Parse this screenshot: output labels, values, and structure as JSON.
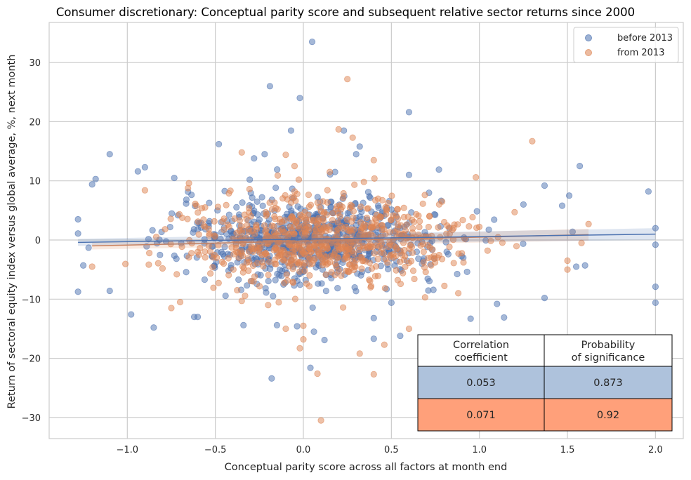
{
  "chart_data": {
    "type": "scatter",
    "title": "Consumer discretionary: Conceptual parity score and subsequent relative sector returns since 2000",
    "xlabel": "Conceptual parity score across all factors at month end",
    "ylabel": "Return of sectoral equity index versus global average, %, next month",
    "xlim": [
      -1.45,
      2.15
    ],
    "ylim": [
      -34,
      37
    ],
    "xticks": [
      -1.0,
      -0.5,
      0.0,
      0.5,
      1.0,
      1.5,
      2.0
    ],
    "xtick_labels": [
      "−1.0",
      "−0.5",
      "0.0",
      "0.5",
      "1.0",
      "1.5",
      "2.0"
    ],
    "yticks": [
      -30,
      -20,
      -10,
      0,
      10,
      20,
      30
    ],
    "ytick_labels": [
      "−30",
      "−20",
      "−10",
      "0",
      "10",
      "20",
      "30"
    ],
    "grid": true,
    "legend_placement": "top-right",
    "series": [
      {
        "name": "before 2013",
        "color": "#4c72b0",
        "regression": {
          "x": [
            -1.28,
            2.0
          ],
          "y": [
            -0.4,
            1.0
          ]
        },
        "points": [
          [
            0.05,
            33.5
          ],
          [
            -0.19,
            26
          ],
          [
            -0.02,
            24
          ],
          [
            0.6,
            21.6
          ],
          [
            -0.07,
            18.5
          ],
          [
            1.96,
            8.2
          ],
          [
            2.0,
            2
          ],
          [
            2.0,
            -0.8
          ],
          [
            2.0,
            -7.9
          ],
          [
            2.0,
            -10.6
          ],
          [
            -1.1,
            14.5
          ],
          [
            -0.48,
            16.2
          ],
          [
            0.04,
            -21.6
          ],
          [
            -0.18,
            -23.4
          ],
          [
            -0.85,
            -14.8
          ],
          [
            1.57,
            12.5
          ],
          [
            0.95,
            -13.3
          ],
          [
            1.14,
            -13.1
          ],
          [
            0.55,
            -16.2
          ],
          [
            -1.1,
            -8.6
          ],
          [
            -1.28,
            3.5
          ],
          [
            -1.28,
            1.1
          ],
          [
            -1.2,
            9.4
          ],
          [
            -1.18,
            10.3
          ],
          [
            -0.94,
            11.6
          ],
          [
            -0.9,
            12.3
          ],
          [
            1.37,
            9.2
          ],
          [
            1.51,
            7.5
          ],
          [
            1.55,
            -4.5
          ],
          [
            1.37,
            -9.8
          ],
          [
            1.1,
            -10.8
          ],
          [
            0.77,
            11.9
          ],
          [
            0.32,
            15.8
          ],
          [
            0.3,
            14.5
          ],
          [
            0.18,
            11.5
          ],
          [
            -0.28,
            13.8
          ],
          [
            0.23,
            18.5
          ],
          [
            -0.34,
            -14.4
          ],
          [
            -0.15,
            -14.4
          ],
          [
            0.4,
            -16.7
          ],
          [
            0.12,
            -16.9
          ],
          [
            -0.62,
            -13.0
          ],
          [
            0.5,
            -10.6
          ],
          [
            -1.25,
            -4.3
          ],
          [
            -1.22,
            -1.3
          ],
          [
            1.6,
            -4.3
          ],
          [
            1.47,
            5.8
          ],
          [
            1.25,
            6.0
          ],
          [
            -0.22,
            14.5
          ],
          [
            0.6,
            11.0
          ],
          [
            -0.6,
            -13.0
          ],
          [
            0.06,
            -15.5
          ],
          [
            0.4,
            -13.2
          ]
        ]
      },
      {
        "name": "from 2013",
        "color": "#dd8452",
        "regression": {
          "x": [
            -1.2,
            1.62
          ],
          "y": [
            -1.0,
            0.9
          ]
        },
        "points": [
          [
            0.25,
            27.2
          ],
          [
            0.2,
            18.7
          ],
          [
            0.28,
            17.3
          ],
          [
            1.3,
            16.7
          ],
          [
            0.1,
            -30.5
          ],
          [
            0.08,
            -22.6
          ],
          [
            0.4,
            -22.7
          ],
          [
            0.46,
            -17.7
          ],
          [
            0.32,
            -19.2
          ],
          [
            -0.02,
            -18.3
          ],
          [
            0.0,
            -14.5
          ],
          [
            -0.35,
            14.8
          ],
          [
            -0.1,
            14.4
          ],
          [
            1.62,
            2.7
          ],
          [
            1.5,
            -3.5
          ],
          [
            1.5,
            -5.0
          ],
          [
            1.58,
            -0.5
          ],
          [
            1.2,
            4.7
          ],
          [
            -0.75,
            -11.5
          ],
          [
            -0.7,
            -10.5
          ],
          [
            -0.35,
            -10.3
          ],
          [
            0.0,
            -16.8
          ],
          [
            -0.1,
            -15.0
          ],
          [
            -0.2,
            -11.0
          ],
          [
            0.6,
            -15.0
          ],
          [
            0.88,
            -9.0
          ],
          [
            0.98,
            10.6
          ],
          [
            -0.8,
            -4.8
          ],
          [
            -1.2,
            -4.5
          ],
          [
            -0.9,
            8.4
          ],
          [
            0.4,
            13.5
          ],
          [
            -0.05,
            12.5
          ],
          [
            0.15,
            11.5
          ],
          [
            -0.65,
            9.6
          ]
        ]
      }
    ],
    "table": {
      "headers": [
        "Correlation\ncoefficient",
        "Probability\nof significance"
      ],
      "rows": [
        {
          "values": [
            "0.053",
            "0.873"
          ],
          "color": "#aec2dc"
        },
        {
          "values": [
            "0.071",
            "0.92"
          ],
          "color": "#ffa07a"
        }
      ]
    }
  }
}
